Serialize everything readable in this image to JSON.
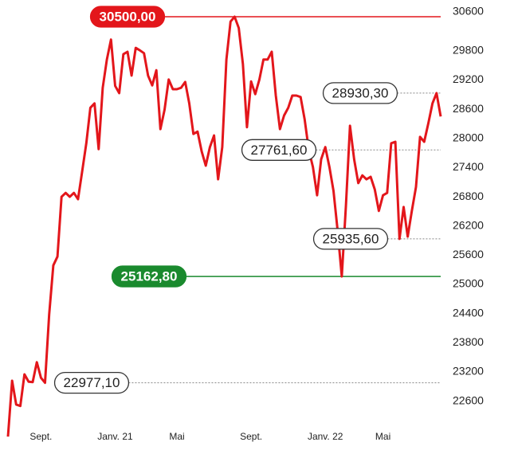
{
  "chart_data": {
    "type": "line",
    "categories": [
      null,
      null,
      null,
      null,
      null,
      null,
      null,
      null,
      "Sept.",
      null,
      null,
      null,
      null,
      null,
      null,
      null,
      null,
      null,
      null,
      null,
      null,
      null,
      null,
      null,
      null,
      null,
      "Janv. 21",
      null,
      null,
      null,
      null,
      null,
      null,
      null,
      null,
      null,
      null,
      null,
      null,
      null,
      null,
      "Mai",
      null,
      null,
      null,
      null,
      null,
      null,
      null,
      null,
      null,
      null,
      null,
      null,
      null,
      null,
      null,
      null,
      null,
      "Sept.",
      null,
      null,
      null,
      null,
      null,
      null,
      null,
      null,
      null,
      null,
      null,
      null,
      null,
      null,
      null,
      null,
      null,
      "Janv. 22",
      null,
      null,
      null,
      null,
      null,
      null,
      null,
      null,
      null,
      null,
      null,
      null,
      null,
      "Mai",
      null,
      null,
      null,
      null,
      null,
      null,
      null,
      null,
      null,
      null,
      null,
      null,
      null,
      null
    ],
    "series": [
      {
        "color": "#e3161b",
        "values": [
          21870,
          23020,
          22530,
          22500,
          23150,
          23000,
          22990,
          23400,
          23080,
          22977.1,
          24380,
          25390,
          25570,
          26800,
          26880,
          26800,
          26880,
          26750,
          27320,
          27900,
          28630,
          28720,
          27780,
          29040,
          29620,
          30030,
          29080,
          28930,
          29730,
          29780,
          29290,
          29860,
          29810,
          29750,
          29290,
          29090,
          29400,
          28190,
          28590,
          29210,
          29010,
          29010,
          29040,
          29160,
          28720,
          28090,
          28140,
          27730,
          27440,
          27820,
          28060,
          27160,
          27820,
          29620,
          30400,
          30500,
          30270,
          29530,
          28230,
          29170,
          28910,
          29210,
          29620,
          29620,
          29780,
          28880,
          28190,
          28470,
          28630,
          28880,
          28880,
          28850,
          28390,
          27761.6,
          27410,
          26830,
          27570,
          27820,
          27410,
          26920,
          26100,
          25162.8,
          26620,
          28260,
          27570,
          27080,
          27240,
          27160,
          27210,
          26950,
          26510,
          26830,
          26880,
          27900,
          27930,
          25935.6,
          26590,
          25980,
          26510,
          27000,
          28030,
          27930,
          28310,
          28720,
          28930.3,
          28450
        ]
      }
    ],
    "ylim": [
      21800,
      30700
    ],
    "yticks": [
      22600,
      23200,
      23800,
      24400,
      25000,
      25600,
      26200,
      26800,
      27400,
      28000,
      28600,
      29200,
      29800,
      30600
    ],
    "annotations": [
      {
        "value": 30500,
        "label": "30500,00",
        "color": "#e3161b",
        "highlight": true
      },
      {
        "value": 28930.3,
        "label": "28930,30",
        "color": "#888888",
        "highlight": false
      },
      {
        "value": 27761.6,
        "label": "27761,60",
        "color": "#888888",
        "highlight": false
      },
      {
        "value": 25935.6,
        "label": "25935,60",
        "color": "#888888",
        "highlight": false
      },
      {
        "value": 25162.8,
        "label": "25162,80",
        "color": "#1a8a2e",
        "highlight": true
      },
      {
        "value": 22977.1,
        "label": "22977,10",
        "color": "#888888",
        "highlight": false
      }
    ]
  }
}
